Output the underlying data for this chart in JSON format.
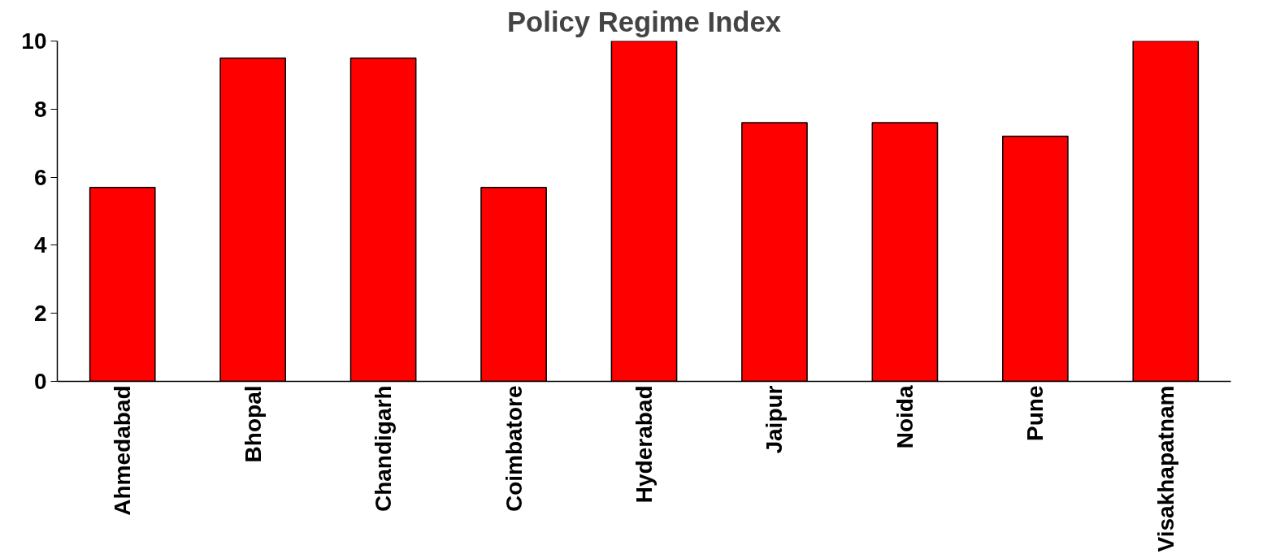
{
  "chart_data": {
    "type": "bar",
    "title": "Policy Regime Index",
    "categories": [
      "Ahmedabad",
      "Bhopal",
      "Chandigarh",
      "Coimbatore",
      "Hyderabad",
      "Jaipur",
      "Noida",
      "Pune",
      "Visakhapatnam"
    ],
    "values": [
      5.7,
      9.5,
      9.5,
      5.7,
      10,
      7.6,
      7.6,
      7.2,
      10
    ],
    "color": "#ff0000",
    "ylim": [
      0,
      10
    ],
    "yticks": [
      0,
      2,
      4,
      6,
      8,
      10
    ],
    "grid": false
  }
}
